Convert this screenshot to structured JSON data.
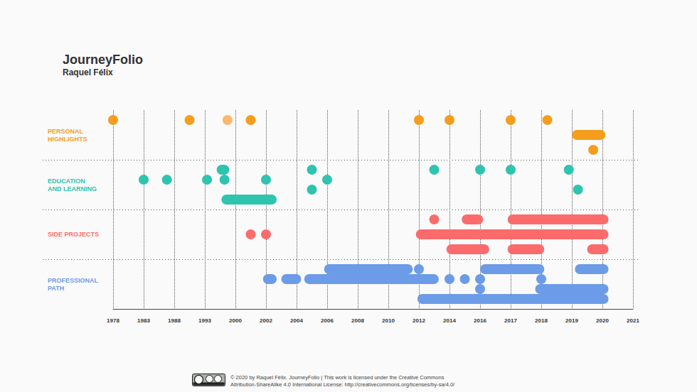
{
  "chart_data": {
    "type": "timeline",
    "title": "JourneyFolio",
    "subtitle": "Raquel Félix",
    "grid": true,
    "x": [
      1978,
      1983,
      1988,
      1993,
      2000,
      2002,
      2004,
      2006,
      2008,
      2010,
      2012,
      2014,
      2016,
      2017,
      2018,
      2019,
      2020,
      2021
    ],
    "series": [
      {
        "name": "PERSONAL\nHIGHLIGHTS",
        "color": "#f59d1c",
        "items": [
          {
            "year": 1978,
            "track": 0
          },
          {
            "year": 1990.5,
            "track": 0
          },
          {
            "year": 1998.2,
            "track": 0,
            "color": "#f9b86e"
          },
          {
            "year": 2001,
            "track": 0
          },
          {
            "year": 2012,
            "track": 0
          },
          {
            "year": 2014,
            "track": 0
          },
          {
            "year": 2017,
            "track": 0
          },
          {
            "year": 2018.2,
            "track": 0
          },
          {
            "start": 2019.0,
            "end": 2020.1,
            "track": 1
          },
          {
            "year": 2019.7,
            "track": 2
          }
        ]
      },
      {
        "name": "EDUCATION\nAND LEARNING",
        "color": "#2ec4b0",
        "items": [
          {
            "start": 1995.7,
            "end": 1998.6,
            "track": 0
          },
          {
            "year": 2005,
            "track": 0
          },
          {
            "year": 2013,
            "track": 0
          },
          {
            "year": 2016,
            "track": 0
          },
          {
            "year": 2017,
            "track": 0
          },
          {
            "year": 2018.9,
            "track": 0
          },
          {
            "year": 1983,
            "track": 1
          },
          {
            "year": 1986.8,
            "track": 1
          },
          {
            "year": 1993.5,
            "track": 1
          },
          {
            "year": 1997.5,
            "track": 1
          },
          {
            "year": 2002,
            "track": 1
          },
          {
            "year": 2006,
            "track": 1
          },
          {
            "year": 2005,
            "track": 2
          },
          {
            "year": 2019.2,
            "track": 2
          },
          {
            "start": 1996.8,
            "end": 2002.7,
            "track": 3
          }
        ]
      },
      {
        "name": "SIDE PROJECTS",
        "color": "#fc6b6b",
        "items": [
          {
            "year": 2013,
            "track": 0
          },
          {
            "start": 2014.8,
            "end": 2016.1,
            "track": 0
          },
          {
            "start": 2016.9,
            "end": 2020.2,
            "track": 0
          },
          {
            "year": 2001,
            "track": 1
          },
          {
            "year": 2002,
            "track": 1
          },
          {
            "start": 2011.8,
            "end": 2020.2,
            "track": 1
          },
          {
            "start": 2013.8,
            "end": 2016.3,
            "track": 2
          },
          {
            "start": 2016.9,
            "end": 2018.1,
            "track": 2
          },
          {
            "start": 2019.5,
            "end": 2020.2,
            "track": 2
          }
        ]
      },
      {
        "name": "PROFESSIONAL\nPATH",
        "color": "#6c9ce8",
        "items": [
          {
            "start": 2005.8,
            "end": 2011.6,
            "track": 0
          },
          {
            "year": 2012,
            "track": 0
          },
          {
            "start": 2016,
            "end": 2018.1,
            "track": 0
          },
          {
            "start": 2019.1,
            "end": 2020.2,
            "track": 0
          },
          {
            "start": 2001.8,
            "end": 2002.7,
            "track": 1
          },
          {
            "start": 2003.0,
            "end": 2004.3,
            "track": 1
          },
          {
            "start": 2004.5,
            "end": 2013.3,
            "track": 1
          },
          {
            "year": 2014,
            "track": 1
          },
          {
            "year": 2015,
            "track": 1
          },
          {
            "year": 2016,
            "track": 1
          },
          {
            "year": 2018,
            "track": 1
          },
          {
            "year": 2016,
            "track": 2
          },
          {
            "start": 2017.8,
            "end": 2020.2,
            "track": 2
          },
          {
            "start": 2011.9,
            "end": 2020.2,
            "track": 3
          }
        ]
      }
    ],
    "annotations": [
      "© 2020 by Raquel Félix. JourneyFolio | This work is licensed under the Creative Commons",
      "Attribution-ShareAlike 4.0 International License: http://creativecommons.org/licenses/by-sa/4.0/"
    ]
  }
}
